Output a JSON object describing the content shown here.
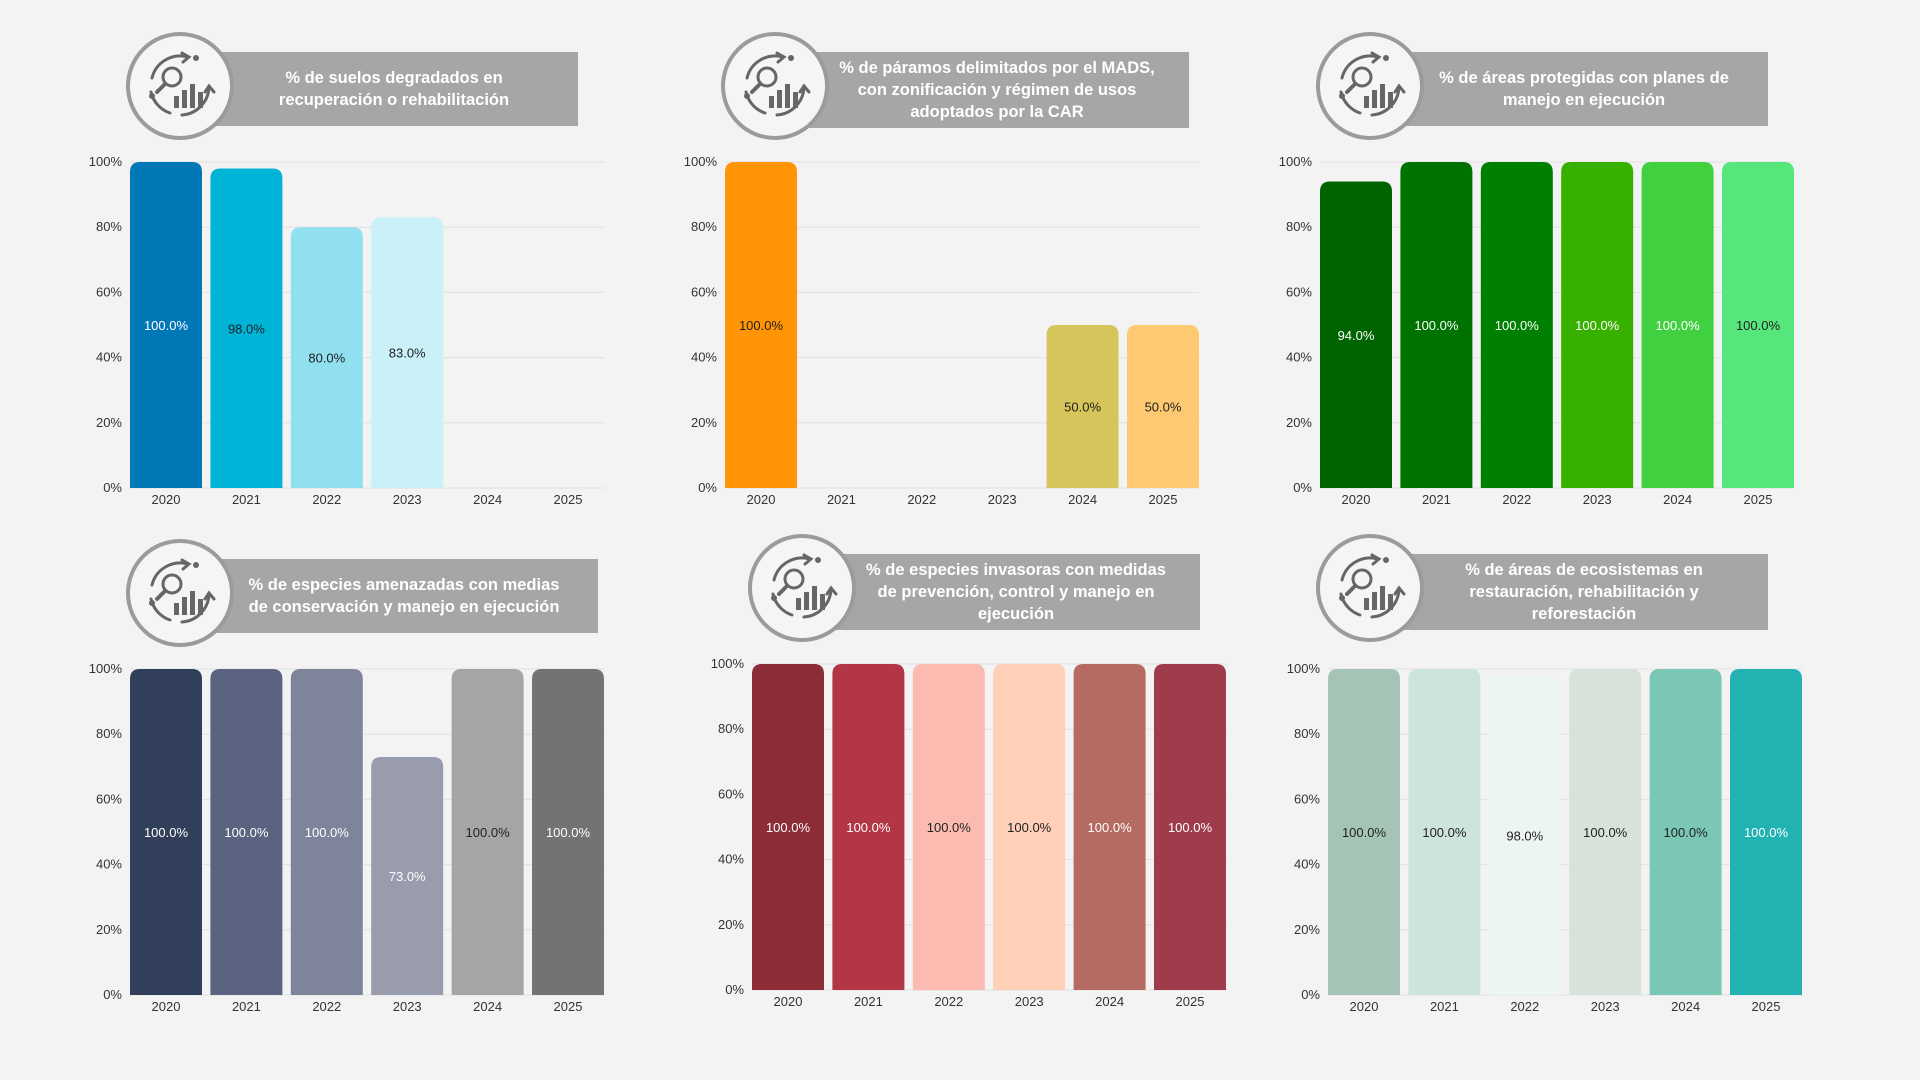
{
  "chart_data": [
    {
      "type": "bar",
      "title": "% de suelos degradados en\nrecuperación o rehabilitación",
      "categories": [
        "2020",
        "2021",
        "2022",
        "2023",
        "2024",
        "2025"
      ],
      "values": [
        100.0,
        98.0,
        80.0,
        83.0,
        null,
        null
      ],
      "labels": [
        "100.0%",
        "98.0%",
        "80.0%",
        "83.0%",
        "",
        ""
      ],
      "colors": [
        "#0077b6",
        "#00b4d8",
        "#90e0ef",
        "#caf0f8",
        "#cccccc",
        "#cccccc"
      ],
      "label_colors": [
        "#ffffff",
        "#222222",
        "#222222",
        "#222222",
        "#222222",
        "#222222"
      ],
      "yticks": [
        "0%",
        "20%",
        "40%",
        "60%",
        "80%",
        "100%"
      ],
      "ylim": [
        0,
        100
      ]
    },
    {
      "type": "bar",
      "title": "% de páramos delimitados por el MADS,\ncon zonificación y régimen de usos\nadoptados por la CAR",
      "categories": [
        "2020",
        "2021",
        "2022",
        "2023",
        "2024",
        "2025"
      ],
      "values": [
        100.0,
        null,
        null,
        null,
        50.0,
        50.0
      ],
      "labels": [
        "100.0%",
        "",
        "",
        "",
        "50.0%",
        "50.0%"
      ],
      "colors": [
        "#ff9505",
        "#cccccc",
        "#cccccc",
        "#cccccc",
        "#d6c55a",
        "#ffc972"
      ],
      "label_colors": [
        "#222222",
        "#222222",
        "#222222",
        "#222222",
        "#222222",
        "#222222"
      ],
      "yticks": [
        "0%",
        "20%",
        "40%",
        "60%",
        "80%",
        "100%"
      ],
      "ylim": [
        0,
        100
      ]
    },
    {
      "type": "bar",
      "title": "% de áreas protegidas con planes de\nmanejo en ejecución",
      "categories": [
        "2020",
        "2021",
        "2022",
        "2023",
        "2024",
        "2025"
      ],
      "values": [
        94.0,
        100.0,
        100.0,
        100.0,
        100.0,
        100.0
      ],
      "labels": [
        "94.0%",
        "100.0%",
        "100.0%",
        "100.0%",
        "100.0%",
        "100.0%"
      ],
      "colors": [
        "#006400",
        "#007200",
        "#008000",
        "#38b000",
        "#41d140",
        "#57e67c"
      ],
      "label_colors": [
        "#ffffff",
        "#ffffff",
        "#ffffff",
        "#ffffff",
        "#ffffff",
        "#222222"
      ],
      "yticks": [
        "0%",
        "20%",
        "40%",
        "60%",
        "80%",
        "100%"
      ],
      "ylim": [
        0,
        100
      ]
    },
    {
      "type": "bar",
      "title": "% de especies amenazadas con medias\nde conservación y manejo en ejecución",
      "categories": [
        "2020",
        "2021",
        "2022",
        "2023",
        "2024",
        "2025"
      ],
      "values": [
        100.0,
        100.0,
        100.0,
        73.0,
        100.0,
        100.0
      ],
      "labels": [
        "100.0%",
        "100.0%",
        "100.0%",
        "73.0%",
        "100.0%",
        "100.0%"
      ],
      "colors": [
        "#323f5a",
        "#5a6480",
        "#7e8499",
        "#989cad",
        "#a5a5a5",
        "#737373"
      ],
      "label_colors": [
        "#ffffff",
        "#ffffff",
        "#ffffff",
        "#ffffff",
        "#222222",
        "#ffffff"
      ],
      "yticks": [
        "0%",
        "20%",
        "40%",
        "60%",
        "80%",
        "100%"
      ],
      "ylim": [
        0,
        100
      ]
    },
    {
      "type": "bar",
      "title": "% de especies invasoras con medidas\nde prevención, control y manejo en\nejecución",
      "categories": [
        "2020",
        "2021",
        "2022",
        "2023",
        "2024",
        "2025"
      ],
      "values": [
        100.0,
        100.0,
        100.0,
        100.0,
        100.0,
        100.0
      ],
      "labels": [
        "100.0%",
        "100.0%",
        "100.0%",
        "100.0%",
        "100.0%",
        "100.0%"
      ],
      "colors": [
        "#8b2c37",
        "#b23645",
        "#fcbbb1",
        "#ffcfb8",
        "#b56b61",
        "#9f3c4b"
      ],
      "label_colors": [
        "#ffffff",
        "#ffffff",
        "#222222",
        "#222222",
        "#ffffff",
        "#ffffff"
      ],
      "yticks": [
        "0%",
        "20%",
        "40%",
        "60%",
        "80%",
        "100%"
      ],
      "ylim": [
        0,
        100
      ]
    },
    {
      "type": "bar",
      "title": "% de áreas de ecosistemas en\nrestauración, rehabilitación y\nreforestación",
      "categories": [
        "2020",
        "2021",
        "2022",
        "2023",
        "2024",
        "2025"
      ],
      "values": [
        100.0,
        100.0,
        98.0,
        100.0,
        100.0,
        100.0
      ],
      "labels": [
        "100.0%",
        "100.0%",
        "98.0%",
        "100.0%",
        "100.0%",
        "100.0%"
      ],
      "colors": [
        "#a5c4b5",
        "#cde3dd",
        "#ecf5f4",
        "#d7e2db",
        "#7ac7b5",
        "#22b2b2"
      ],
      "label_colors": [
        "#222222",
        "#222222",
        "#222222",
        "#222222",
        "#222222",
        "#ffffff"
      ],
      "yticks": [
        "0%",
        "20%",
        "40%",
        "60%",
        "80%",
        "100%"
      ],
      "ylim": [
        0,
        100
      ]
    }
  ]
}
